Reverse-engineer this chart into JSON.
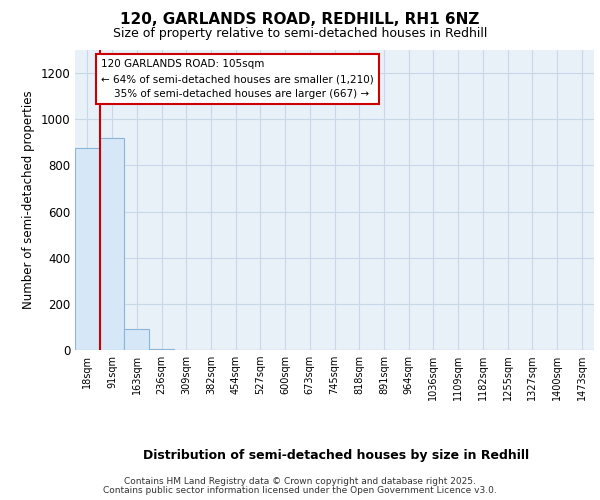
{
  "title1": "120, GARLANDS ROAD, REDHILL, RH1 6NZ",
  "title2": "Size of property relative to semi-detached houses in Redhill",
  "xlabel": "Distribution of semi-detached houses by size in Redhill",
  "ylabel": "Number of semi-detached properties",
  "bin_labels": [
    "18sqm",
    "91sqm",
    "163sqm",
    "236sqm",
    "309sqm",
    "382sqm",
    "454sqm",
    "527sqm",
    "600sqm",
    "673sqm",
    "745sqm",
    "818sqm",
    "891sqm",
    "964sqm",
    "1036sqm",
    "1109sqm",
    "1182sqm",
    "1255sqm",
    "1327sqm",
    "1400sqm",
    "1473sqm"
  ],
  "bin_values": [
    875,
    920,
    90,
    5,
    0,
    0,
    0,
    0,
    0,
    0,
    0,
    0,
    0,
    0,
    0,
    0,
    0,
    0,
    0,
    0,
    0
  ],
  "bar_color": "#d6e8f7",
  "bar_edge_color": "#8ab4d8",
  "annotation_text": "120 GARLANDS ROAD: 105sqm\n← 64% of semi-detached houses are smaller (1,210)\n    35% of semi-detached houses are larger (667) →",
  "annotation_box_color": "#cc0000",
  "annotation_box_face": "#ffffff",
  "ylim": [
    0,
    1300
  ],
  "yticks": [
    0,
    200,
    400,
    600,
    800,
    1000,
    1200
  ],
  "grid_color": "#c8d8e8",
  "background_color": "#e8f0f8",
  "footer1": "Contains HM Land Registry data © Crown copyright and database right 2025.",
  "footer2": "Contains public sector information licensed under the Open Government Licence v3.0.",
  "prop_line_color": "#cc0000",
  "title1_fontsize": 11,
  "title2_fontsize": 9
}
